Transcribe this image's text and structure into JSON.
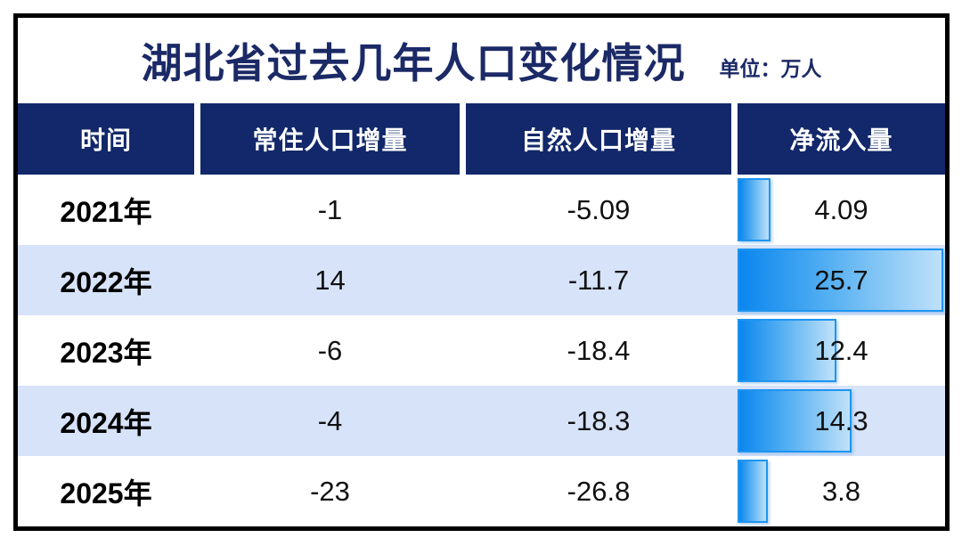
{
  "title": "湖北省过去几年人口变化情况",
  "unit_label": "单位：万人",
  "table": {
    "columns": [
      "时间",
      "常住人口增量",
      "自然人口增量",
      "净流入量"
    ],
    "rows": [
      {
        "year": "2021年",
        "resident": "-1",
        "natural": "-5.09",
        "net_inflow": "4.09"
      },
      {
        "year": "2022年",
        "resident": "14",
        "natural": "-11.7",
        "net_inflow": "25.7"
      },
      {
        "year": "2023年",
        "resident": "-6",
        "natural": "-18.4",
        "net_inflow": "12.4"
      },
      {
        "year": "2024年",
        "resident": "-4",
        "natural": "-18.3",
        "net_inflow": "14.3"
      },
      {
        "year": "2025年",
        "resident": "-23",
        "natural": "-26.8",
        "net_inflow": "3.8"
      }
    ]
  },
  "chart_data": {
    "type": "bar",
    "title": "湖北省过去几年人口变化情况",
    "unit": "万人",
    "categories": [
      "2021年",
      "2022年",
      "2023年",
      "2024年",
      "2025年"
    ],
    "series": [
      {
        "name": "常住人口增量",
        "values": [
          -1,
          14,
          -6,
          -4,
          -23
        ]
      },
      {
        "name": "自然人口增量",
        "values": [
          -5.09,
          -11.7,
          -18.4,
          -18.3,
          -26.8
        ]
      },
      {
        "name": "净流入量",
        "values": [
          4.09,
          25.7,
          12.4,
          14.3,
          3.8
        ]
      }
    ],
    "bar_series_shown": "净流入量",
    "values": [
      4.09,
      25.7,
      12.4,
      14.3,
      3.8
    ],
    "xlim": [
      0,
      25.96
    ],
    "orientation": "horizontal",
    "grid": false,
    "legend_position": "none"
  },
  "colors": {
    "frame_border": "#000000",
    "header_bg": "#12286a",
    "header_text": "#ffffff",
    "title_text": "#1b2a66",
    "row_alt_bg": "#d7e3f9",
    "row_bg": "#ffffff",
    "bar_gradient_start": "#0a86ee",
    "bar_gradient_end": "#bfe1f9",
    "bar_border": "#1e95f0",
    "value_text": "#111111"
  }
}
